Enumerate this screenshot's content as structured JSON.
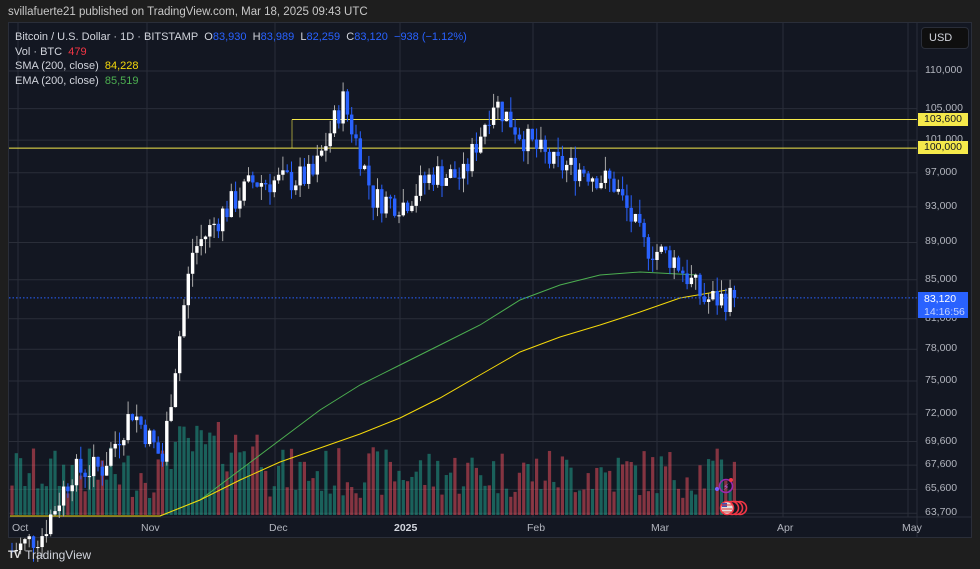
{
  "attribution": "svillafuerte21 published on TradingView.com, Mar 18, 2025 09:43 UTC",
  "legend": {
    "symbol": "Bitcoin / U.S. Dollar · 1D · BITSTAMP",
    "open_label": "O",
    "open": "83,930",
    "high_label": "H",
    "high": "83,989",
    "low_label": "L",
    "low": "82,259",
    "close_label": "C",
    "close": "83,120",
    "change": "−938 (−1.12%)",
    "vol_label": "Vol · BTC",
    "vol": "479",
    "sma_label": "SMA (200, close)",
    "sma": "84,228",
    "ema_label": "EMA (200, close)",
    "ema": "85,519"
  },
  "currency_button": "USD",
  "price_axis": [
    "110,000",
    "105,000",
    "101,000",
    "97,000",
    "93,000",
    "89,000",
    "85,000",
    "81,000",
    "78,000",
    "75,000",
    "72,000",
    "69,600",
    "67,600",
    "65,600",
    "63,700"
  ],
  "price_tags": {
    "level_1": "103,600",
    "level_2": "100,000",
    "last_price": "83,120",
    "countdown": "14:16:56"
  },
  "time_axis": [
    "Oct",
    "Nov",
    "Dec",
    "2025",
    "Feb",
    "Mar",
    "Apr",
    "May"
  ],
  "footer": {
    "brand": "TradingView",
    "logo": "TV"
  },
  "colors": {
    "background": "#131722",
    "up_candle": "#ffffff",
    "down_candle": "#2962ff",
    "vol_up": "#22ab94",
    "vol_down": "#f7525f",
    "sma": "#f5d90a",
    "ema": "#4caf50",
    "hline": "#f5e94b"
  },
  "chart_data": {
    "type": "candlestick",
    "title": "Bitcoin / U.S. Dollar · 1D · BITSTAMP",
    "xlabel": "",
    "ylabel": "USD",
    "y_scale": "log",
    "ylim": [
      63000,
      112000
    ],
    "x_ticks": [
      "Oct",
      "Nov",
      "Dec",
      "2025",
      "Feb",
      "Mar",
      "Apr",
      "May"
    ],
    "y_ticks": [
      110000,
      105000,
      101000,
      97000,
      93000,
      89000,
      85000,
      81000,
      78000,
      75000,
      72000,
      69600,
      67600,
      65600,
      63700
    ],
    "horizontal_lines": [
      103600,
      100000
    ],
    "last": {
      "open": 83930,
      "high": 83989,
      "low": 82259,
      "close": 83120,
      "change": -938,
      "change_pct": -1.12,
      "volume": 479
    },
    "indicators": [
      {
        "name": "SMA (200, close)",
        "last": 84228,
        "color": "#f5d90a"
      },
      {
        "name": "EMA (200, close)",
        "last": 85519,
        "color": "#4caf50"
      }
    ],
    "closes_approx_weekly": [
      {
        "date": "Oct 1",
        "close": 60800
      },
      {
        "date": "Oct 8",
        "close": 62100
      },
      {
        "date": "Oct 15",
        "close": 67000
      },
      {
        "date": "Oct 22",
        "close": 67400
      },
      {
        "date": "Oct 29",
        "close": 72300
      },
      {
        "date": "Nov 5",
        "close": 68000
      },
      {
        "date": "Nov 12",
        "close": 88000
      },
      {
        "date": "Nov 19",
        "close": 92300
      },
      {
        "date": "Nov 26",
        "close": 95900
      },
      {
        "date": "Dec 3",
        "close": 96000
      },
      {
        "date": "Dec 10",
        "close": 96600
      },
      {
        "date": "Dec 17",
        "close": 106100
      },
      {
        "date": "Dec 24",
        "close": 94000
      },
      {
        "date": "Dec 31",
        "close": 93400
      },
      {
        "date": "Jan 7",
        "close": 96900
      },
      {
        "date": "Jan 14",
        "close": 96500
      },
      {
        "date": "Jan 21",
        "close": 106100
      },
      {
        "date": "Jan 28",
        "close": 101300
      },
      {
        "date": "Feb 4",
        "close": 98000
      },
      {
        "date": "Feb 11",
        "close": 97400
      },
      {
        "date": "Feb 18",
        "close": 95600
      },
      {
        "date": "Feb 25",
        "close": 88700
      },
      {
        "date": "Mar 4",
        "close": 87200
      },
      {
        "date": "Mar 11",
        "close": 82900
      },
      {
        "date": "Mar 18",
        "close": 83120
      }
    ]
  }
}
